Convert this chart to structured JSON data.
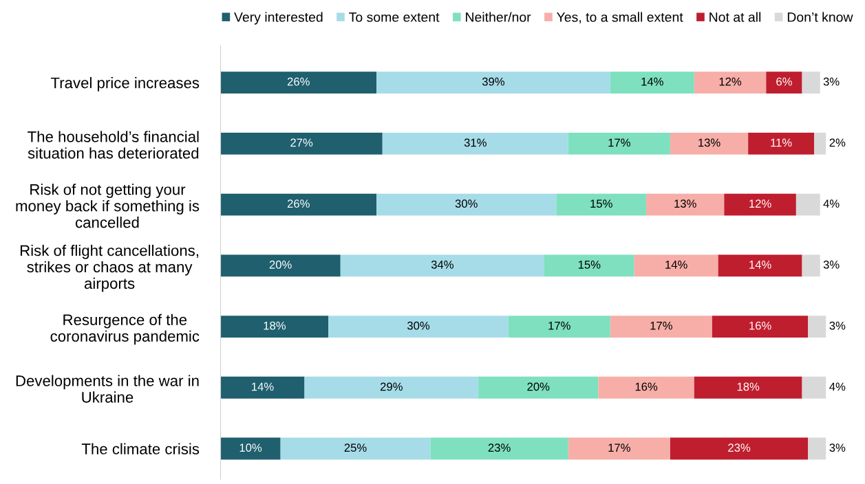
{
  "chart_data": {
    "type": "bar",
    "orientation": "horizontal",
    "stacked": true,
    "legend": "top",
    "grid": false,
    "tick_labels": "y",
    "categories": [
      "Travel price increases",
      "The household’s financial\nsituation has deteriorated",
      "Risk of not getting your\nmoney back if something is\ncancelled",
      "Risk of flight cancellations,\nstrikes or chaos at many\nairports",
      "Resurgence of the\ncoronavirus pandemic",
      "Developments in the war in\nUkraine",
      "The climate crisis"
    ],
    "series": [
      {
        "name": "Very interested",
        "color": "#1f5f6e",
        "values": [
          26,
          27,
          26,
          20,
          18,
          14,
          10
        ],
        "value_labels": [
          "26%",
          "27%",
          "26%",
          "20%",
          "18%",
          "14%",
          "10%"
        ]
      },
      {
        "name": "To some extent",
        "color": "#a6dce8",
        "values": [
          39,
          31,
          30,
          34,
          30,
          29,
          25
        ],
        "value_labels": [
          "39%",
          "31%",
          "30%",
          "34%",
          "30%",
          "29%",
          "25%"
        ]
      },
      {
        "name": "Neither/nor",
        "color": "#7ee0bf",
        "values": [
          14,
          17,
          15,
          15,
          17,
          20,
          23
        ],
        "value_labels": [
          "14%",
          "17%",
          "15%",
          "15%",
          "17%",
          "20%",
          "23%"
        ]
      },
      {
        "name": "Yes, to a small extent",
        "color": "#f7aea8",
        "values": [
          12,
          13,
          13,
          14,
          17,
          16,
          17
        ],
        "value_labels": [
          "12%",
          "13%",
          "13%",
          "14%",
          "17%",
          "16%",
          "17%"
        ]
      },
      {
        "name": "Not at all",
        "color": "#bf1e2e",
        "values": [
          6,
          11,
          12,
          14,
          16,
          18,
          23
        ],
        "value_labels": [
          "6%",
          "11%",
          "12%",
          "14%",
          "16%",
          "18%",
          "23%"
        ]
      },
      {
        "name": "Don’t know",
        "color": "#d9d9d9",
        "values": [
          3,
          2,
          4,
          3,
          3,
          4,
          3
        ],
        "value_labels": [
          "3%",
          "2%",
          "4%",
          "3%",
          "3%",
          "4%",
          "3%"
        ]
      }
    ]
  }
}
